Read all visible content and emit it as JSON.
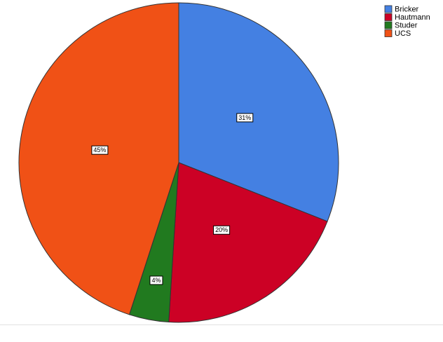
{
  "chart_data": {
    "type": "pie",
    "categories": [
      "Bricker",
      "Hautmann",
      "Studer",
      "UCS"
    ],
    "values": [
      31,
      20,
      4,
      45
    ],
    "value_labels": [
      "31%",
      "20%",
      "4%",
      "45%"
    ],
    "colors": [
      "#4480e2",
      "#cc0125",
      "#217a1f",
      "#f05116"
    ],
    "legend": "top-right"
  }
}
